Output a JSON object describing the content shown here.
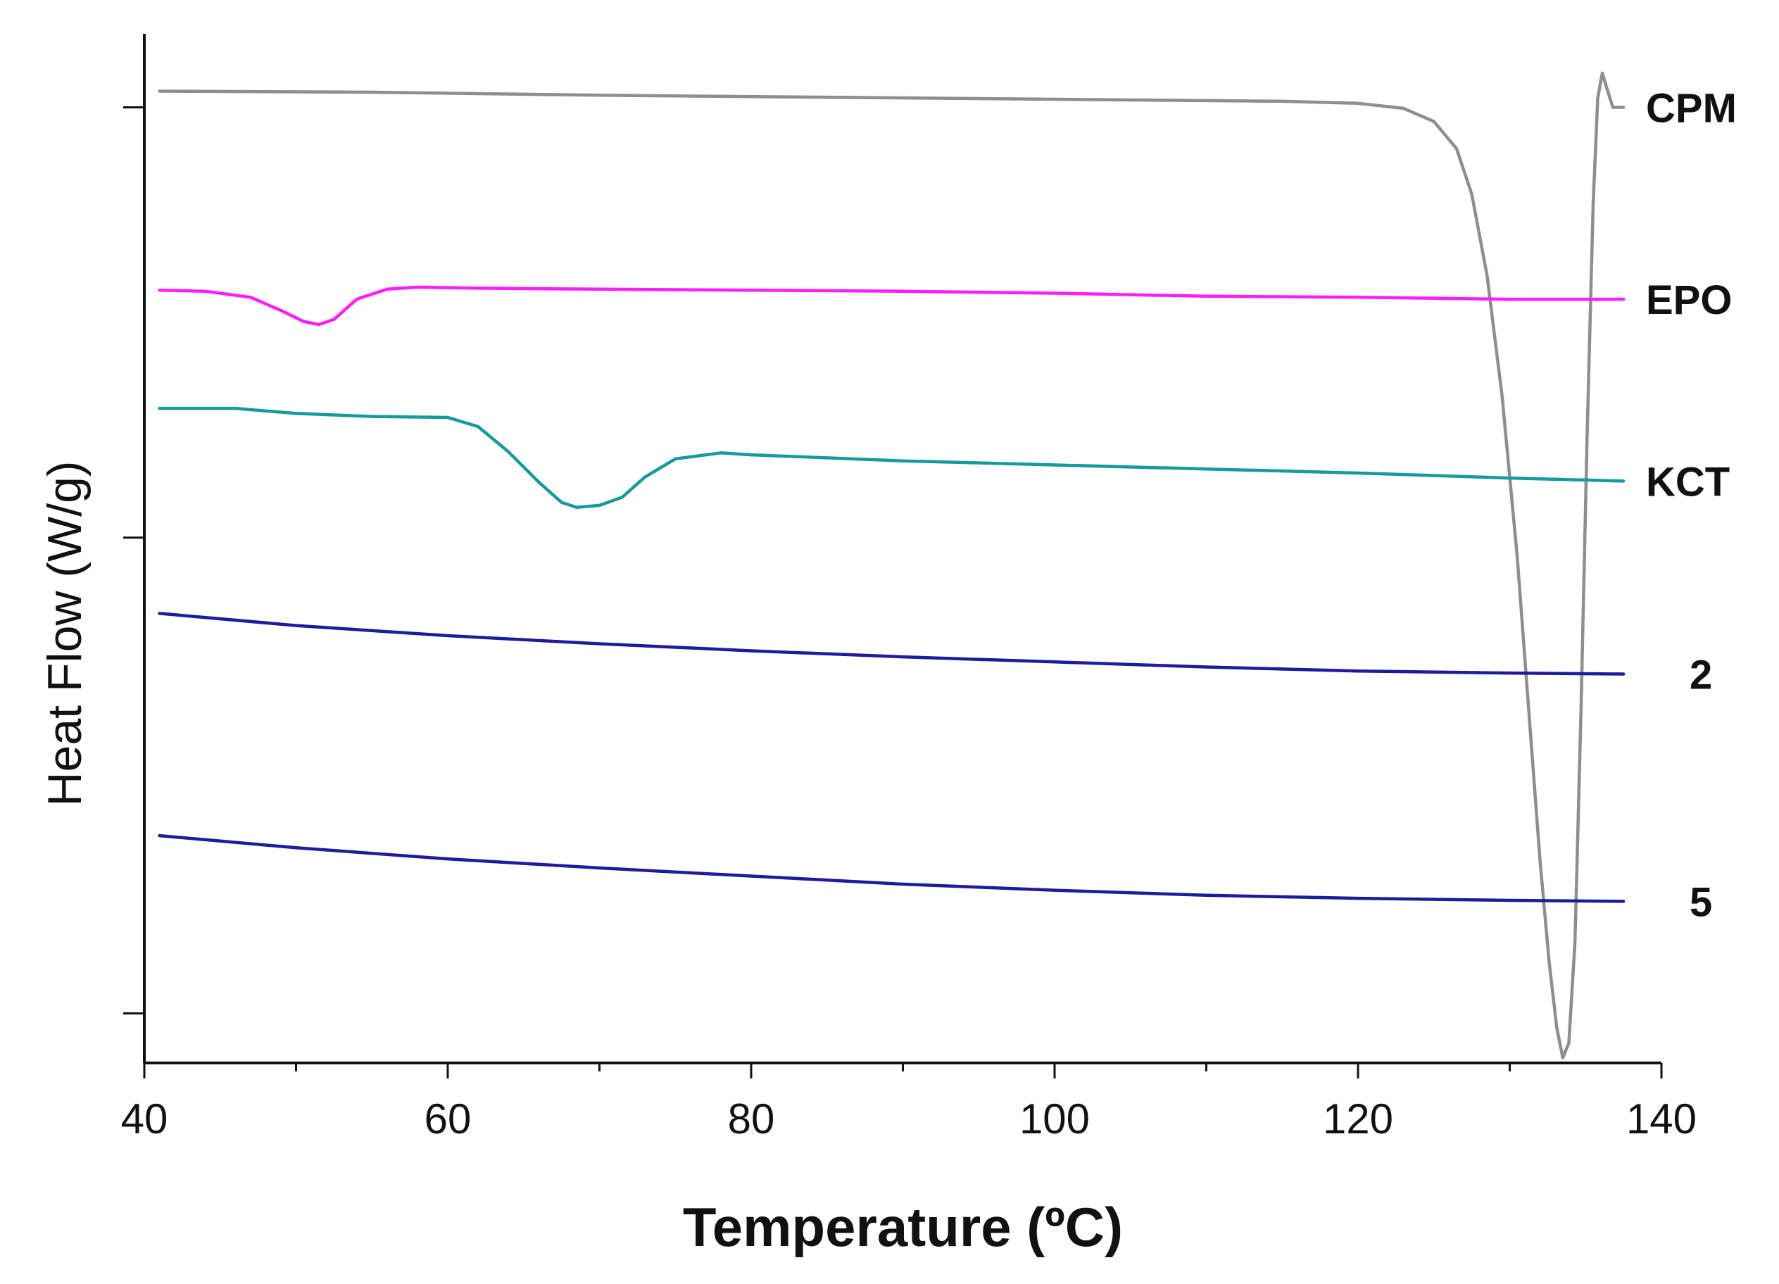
{
  "chart_data": {
    "type": "line",
    "title": "",
    "xlabel": "Temperature (ºC)",
    "ylabel": "Heat Flow (W/g)",
    "xlim": [
      40,
      140
    ],
    "ylim": [
      0,
      100
    ],
    "x_ticks": [
      40,
      60,
      80,
      100,
      120,
      140
    ],
    "x_tick_labels": [
      "40",
      "60",
      "80",
      "100",
      "120",
      "140"
    ],
    "y_ticks": [
      4.9,
      52,
      94.6
    ],
    "grid": false,
    "legend": "none (series labelled at right end)",
    "series": [
      {
        "name": "CPM",
        "color": "#8e8e8e",
        "x": [
          41,
          55,
          70,
          85,
          100,
          115,
          120,
          123,
          125,
          126.5,
          127.5,
          128.5,
          129.5,
          130.5,
          131.3,
          132,
          132.6,
          133.1,
          133.5,
          133.9,
          134.3,
          134.7,
          135.1,
          135.5,
          135.8,
          136.1,
          136.4,
          136.8,
          137.5
        ],
        "y": [
          96.2,
          96.1,
          95.8,
          95.6,
          95.4,
          95.2,
          95.0,
          94.5,
          93.2,
          90.5,
          86.0,
          78.0,
          66.0,
          50.0,
          34.0,
          20.0,
          10.0,
          3.5,
          0.5,
          2.0,
          12.0,
          35.0,
          62.0,
          85.0,
          95.5,
          98.0,
          96.5,
          94.6,
          94.6
        ]
      },
      {
        "name": "EPO",
        "color": "#ff1dff",
        "x": [
          41,
          44,
          47,
          49,
          50.5,
          51.5,
          52.5,
          54,
          56,
          58,
          62,
          70,
          80,
          90,
          100,
          110,
          120,
          130,
          137.5
        ],
        "y": [
          76.5,
          76.4,
          75.8,
          74.5,
          73.4,
          73.1,
          73.6,
          75.6,
          76.6,
          76.8,
          76.7,
          76.6,
          76.5,
          76.4,
          76.2,
          75.9,
          75.8,
          75.6,
          75.6
        ]
      },
      {
        "name": "KCT",
        "color": "#179a9a",
        "x": [
          41,
          46,
          50,
          55,
          60,
          62,
          64,
          66,
          67.5,
          68.5,
          70,
          71.5,
          73,
          75,
          78,
          80,
          90,
          100,
          110,
          120,
          130,
          137.5
        ],
        "y": [
          64.8,
          64.8,
          64.3,
          64.0,
          63.9,
          63.0,
          60.5,
          57.5,
          55.5,
          55.0,
          55.2,
          56.0,
          58.0,
          59.8,
          60.4,
          60.2,
          59.6,
          59.2,
          58.8,
          58.4,
          57.9,
          57.6
        ]
      },
      {
        "name": "2",
        "color": "#1c1c9e",
        "x": [
          41,
          50,
          60,
          70,
          80,
          90,
          100,
          110,
          120,
          130,
          137.5
        ],
        "y": [
          44.5,
          43.3,
          42.3,
          41.5,
          40.8,
          40.2,
          39.7,
          39.2,
          38.8,
          38.6,
          38.5
        ]
      },
      {
        "name": "5",
        "color": "#1c1c9e",
        "x": [
          41,
          50,
          60,
          70,
          80,
          90,
          100,
          110,
          120,
          130,
          137.5
        ],
        "y": [
          22.5,
          21.3,
          20.2,
          19.3,
          18.5,
          17.7,
          17.1,
          16.6,
          16.3,
          16.1,
          16.0
        ]
      }
    ]
  }
}
